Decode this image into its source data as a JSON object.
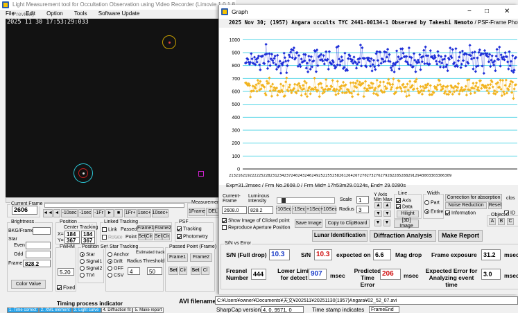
{
  "main_window": {
    "title": "Light Measurement tool for Occultation Observation using Video Recorder (Limovie 1.0.1.8 Preview)",
    "menu": [
      "File",
      "Edit",
      "Option",
      "Tools",
      "Software Update"
    ],
    "timestamp": "2025 11 30 17:53:29:033",
    "current_frame_label": "Current Frame",
    "current_frame_value": "2606",
    "nav_buttons": [
      "◄◄",
      "◄",
      "-10sec",
      "-1sec",
      "-1Fr",
      "►",
      "■",
      "1Fr+",
      "1sec+",
      "10sec+"
    ],
    "measurement_label": "Measurement",
    "one_frame_btn": "1Frame",
    "del_btn": "DEL",
    "brightness": {
      "title": "Brightness",
      "bkg_label": "BKG/Frame",
      "star_label": "Star",
      "even_label": "Even",
      "odd_label": "Odd",
      "frame_label": "Frame",
      "frame_value": "828.2",
      "color_btn": "Color Value"
    },
    "position": {
      "title": "Position",
      "center_tracking": "Center Tracking",
      "x_label": "X=",
      "x1": "184",
      "x2": "184",
      "y_label": "Y=",
      "y1": "367",
      "y2": "367"
    },
    "linked_tracking": {
      "title": "Linked Tracking",
      "link": "Link",
      "passed": "Passed",
      "frame1": "Frame1",
      "frame2": "Frame2",
      "rotate": "Rotate",
      "point": "Point",
      "set": "Set",
      "clr1": "Clr",
      "sel": "Sel",
      "clr2": "Clr"
    },
    "psf": {
      "title": "PSF",
      "tracking": "Tracking",
      "photometry": "Photometry"
    },
    "fwhm": {
      "title": "FWHM",
      "value": "5.20",
      "fixed": "Fixed"
    },
    "position_set": {
      "title": "Position Set",
      "star": "Star",
      "signal1": "Signal1",
      "signal2": "Signal2",
      "tivi": "TIVi"
    },
    "star_tracking": {
      "title": "Star Tracking",
      "anchor": "Anchor",
      "drift": "Drift",
      "off": "OFF",
      "csv": "CSV",
      "estimated": "Estimated track",
      "radius_label": "Radius",
      "threshold_label": "Threshold",
      "radius_value": "4",
      "threshold_value": "50"
    },
    "passed_point": {
      "title": "Passed Point (Frame)",
      "frame1": "Frame1",
      "frame2": "Frame2",
      "set": "Set",
      "clr1": "Clr",
      "set2": "Set",
      "clr2": "Cl"
    },
    "timing_title": "Timing process indicator",
    "timing_steps": [
      "1. Time correct",
      "2. XML element",
      "3. Light curve",
      "4. Diffraction fit",
      "5. Make report"
    ],
    "avi_label": "AVI filename",
    "avi_value": "C:¥Users¥owner¥Documents¥天文¥202511¥20251130(1957)Angara¥02_52_07.avi",
    "sharpcap_label": "SharpCap version",
    "sharpcap_value": "4. 0. 9571. 0",
    "timestamp_label": "Time stamp indicates",
    "timestamp_value": "FrameEnd"
  },
  "graph_window": {
    "title": "Graph",
    "header": "2025 Nov 30; (1957) Angara occults TYC 2441-00134-1 Observed by Takeshi Nemoto",
    "header_suffix": "/ PSF-Frame Photometry /",
    "y_ticks": [
      "1000",
      "900",
      "800",
      "700",
      "600",
      "500",
      "400",
      "300",
      "200",
      "100",
      "0"
    ],
    "x_tick_text": "2132162192222252282312342372402432462492522552582612642672702732762792822852882912943003303306309",
    "exp_line": "Exp=31.2msec / Frm No.2608.0 / Frm Mid= 17h53m29.0124s,  End= 29.0280s",
    "controls": {
      "current_label": "Current-Frame",
      "current_value": "2608.0",
      "luminous_label": "Luminous Intensity",
      "luminous_value": "828.2",
      "scale_label": "Scale",
      "scale_value": "1",
      "y_axis_label": "Y Axis Min Max",
      "radius_label": "Radius",
      "radius_value": "3",
      "minus10": "-10Sec",
      "minus1": "-1Sec",
      "plus1": "+1Sec",
      "plus10": "+10Sec",
      "line_title": "Line",
      "axis": "Axis",
      "data": "Data",
      "hilight": "Hilight",
      "width_title": "Width",
      "part": "Part",
      "entire": "Entire",
      "correction": "Correction for absorption",
      "noise": "Noise Reduction",
      "reset": "Reset",
      "information": "Information",
      "object_title": "Object",
      "obj_a": "A",
      "obj_b": "B",
      "obj_c": "C",
      "close": "clos",
      "id": "ID",
      "show_image": "Show Image of Clicked point",
      "reproduce": "Reproduce Aperture Position",
      "save_image": "Save Image",
      "copy_clip": "Copy to ClipBoard",
      "three_d": "[3D] Image",
      "lunar": "Lunar Identification",
      "diffraction": "Diffraction Analysis",
      "make_report": "Make Report"
    },
    "snr": {
      "title": "S/N vs Error",
      "sn_full_label": "S/N (Full drop)",
      "sn_full_value": "10.3",
      "sn_label": "S/N",
      "sn_value": "10.3",
      "expected_label": "expected on",
      "expected_value": "6.6",
      "mag_drop": "Mag drop",
      "frame_exposure_label": "Frame exposure",
      "frame_exposure_value": "31.2",
      "msec": "msec",
      "fresnel_label": "Fresnel Number",
      "fresnel_value": "444",
      "lower_limit_label": "Lower Limit for detect",
      "lower_limit_value": "907",
      "predicted_label": "Predicted Time Error",
      "predicted_value": "206",
      "expected_error_label": "Expected Error for Analyzing event time",
      "expected_error_value": "3.0"
    },
    "window_controls": [
      "−",
      "□",
      "✕"
    ]
  },
  "colors": {
    "accent": "#2a5db0",
    "series_blue": "#1f2fd8",
    "series_orange": "#f2b420",
    "gridline": "#55d6e6",
    "sn_blue": "#1a3cc8",
    "sn_red": "#d01010"
  },
  "chart_data": {
    "type": "scatter",
    "title": "2025 Nov 30; (1957) Angara occults TYC 2441-00134-1 Observed by Takeshi Nemoto / PSF-Frame Photometry /",
    "ylim": [
      0,
      1050
    ],
    "series": [
      {
        "name": "",
        "color": "#1f2fd8",
        "mean": 850,
        "spread": 70
      },
      {
        "name": "",
        "color": "#f2b420",
        "mean": 630,
        "spread": 50
      }
    ],
    "grid": true
  }
}
